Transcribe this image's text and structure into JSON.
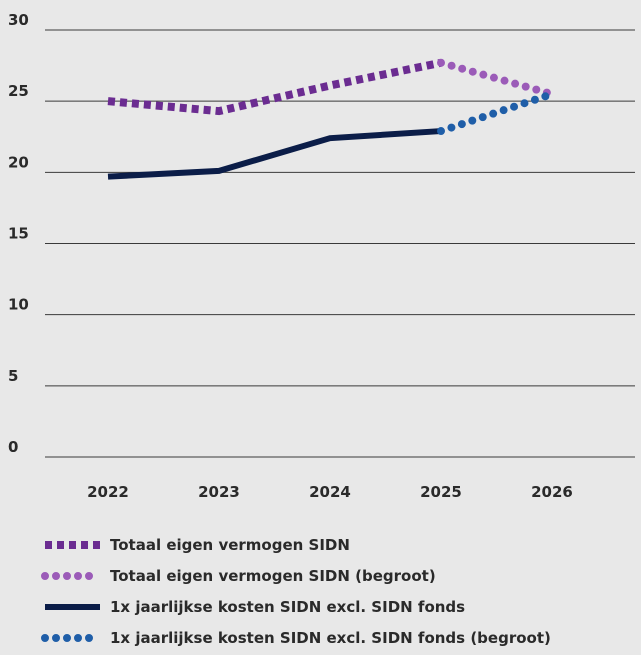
{
  "chart_data": {
    "type": "line",
    "categories": [
      "2022",
      "2023",
      "2024",
      "2025",
      "2026"
    ],
    "ylim": [
      0,
      30
    ],
    "yticks": [
      0,
      5,
      10,
      15,
      20,
      25,
      30
    ],
    "grid": true,
    "legend": "bottom",
    "series": [
      {
        "name": "Totaal eigen vermogen SIDN",
        "color": "#6b2c91",
        "line_style": "square-dash",
        "values": [
          25,
          24.3,
          26.1,
          27.7,
          null
        ]
      },
      {
        "name": "Totaal eigen vermogen SIDN (begroot)",
        "color": "#9b5bb8",
        "line_style": "dot",
        "values": [
          null,
          null,
          null,
          27.7,
          25.5
        ]
      },
      {
        "name": "1x jaarlijkse kosten SIDN excl. SIDN fonds",
        "color": "#0b1d48",
        "line_style": "solid",
        "values": [
          19.7,
          20.1,
          22.4,
          22.9,
          null
        ]
      },
      {
        "name": "1x jaarlijkse kosten SIDN excl. SIDN fonds (begroot)",
        "color": "#1f5ea8",
        "line_style": "dot",
        "values": [
          null,
          null,
          null,
          22.9,
          25.5
        ]
      }
    ]
  }
}
